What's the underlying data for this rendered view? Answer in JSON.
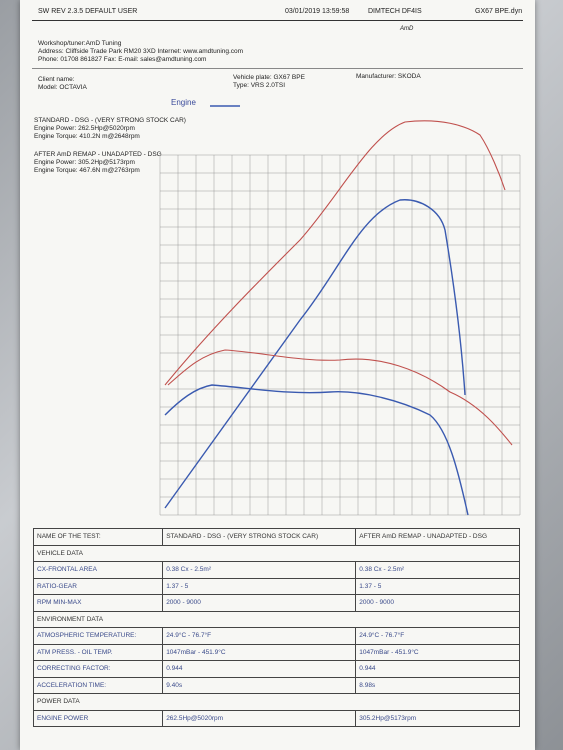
{
  "header": {
    "software": "SW REV 2.3.5   DEFAULT USER",
    "datetime": "03/01/2019 13:59:58",
    "device": "DIMTECH DF4IS",
    "file": "GX67 BPE.dyn",
    "logo": "AmD"
  },
  "workshop": {
    "name": "Workshop/tuner:AmD Tuning",
    "address": "Address: Cliffside Trade Park RM20 3XD Internet: www.amdtuning.com",
    "phone": "Phone: 01708 861827 Fax:  E-mail: sales@amdtuning.com"
  },
  "client": {
    "name": "Client name:",
    "model": "Model: OCTAVIA",
    "plate": "Vehicle plate: GX67 BPE",
    "type": "Type: VRS 2.0TSI",
    "manufacturer": "Manufacturer: SKODA"
  },
  "legend": "Engine",
  "runs": [
    {
      "title": "STANDARD - DSG - (VERY STRONG STOCK CAR)",
      "power": "Engine Power: 262.5Hp@5020rpm",
      "torque": "Engine Torque: 410.2N m@2648rpm"
    },
    {
      "title": "AFTER AmD REMAP - UNADAPTED - DSG",
      "power": "Engine Power: 305.2Hp@5173rpm",
      "torque": "Engine Torque: 467.6N m@2763rpm"
    }
  ],
  "table": {
    "header": [
      "NAME OF THE TEST:",
      "STANDARD - DSG - (VERY STRONG STOCK CAR)",
      "AFTER AmD REMAP - UNADAPTED - DSG"
    ],
    "rows": [
      [
        "VEHICLE DATA"
      ],
      [
        "CX-FRONTAL AREA",
        "0.38 Cx - 2.5m²",
        "0.38 Cx - 2.5m²"
      ],
      [
        "RATIO-GEAR",
        "1.37 - 5",
        "1.37 - 5"
      ],
      [
        "RPM MIN-MAX",
        "2000 - 9000",
        "2000 - 9000"
      ],
      [
        "ENVIRONMENT DATA"
      ],
      [
        "ATMOSPHERIC TEMPERATURE:",
        "24.9°C - 76.7°F",
        "24.9°C - 76.7°F"
      ],
      [
        "ATM PRESS. - OIL TEMP.",
        "1047mBar - 451.9°C",
        "1047mBar - 451.9°C"
      ],
      [
        "CORRECTING FACTOR:",
        "0.944",
        "0.944"
      ],
      [
        "ACCELERATION TIME:",
        "9.40s",
        "8.98s"
      ],
      [
        "POWER DATA"
      ],
      [
        "ENGINE POWER",
        "262.5Hp@5020rpm",
        "305.2Hp@5173rpm"
      ]
    ]
  }
}
